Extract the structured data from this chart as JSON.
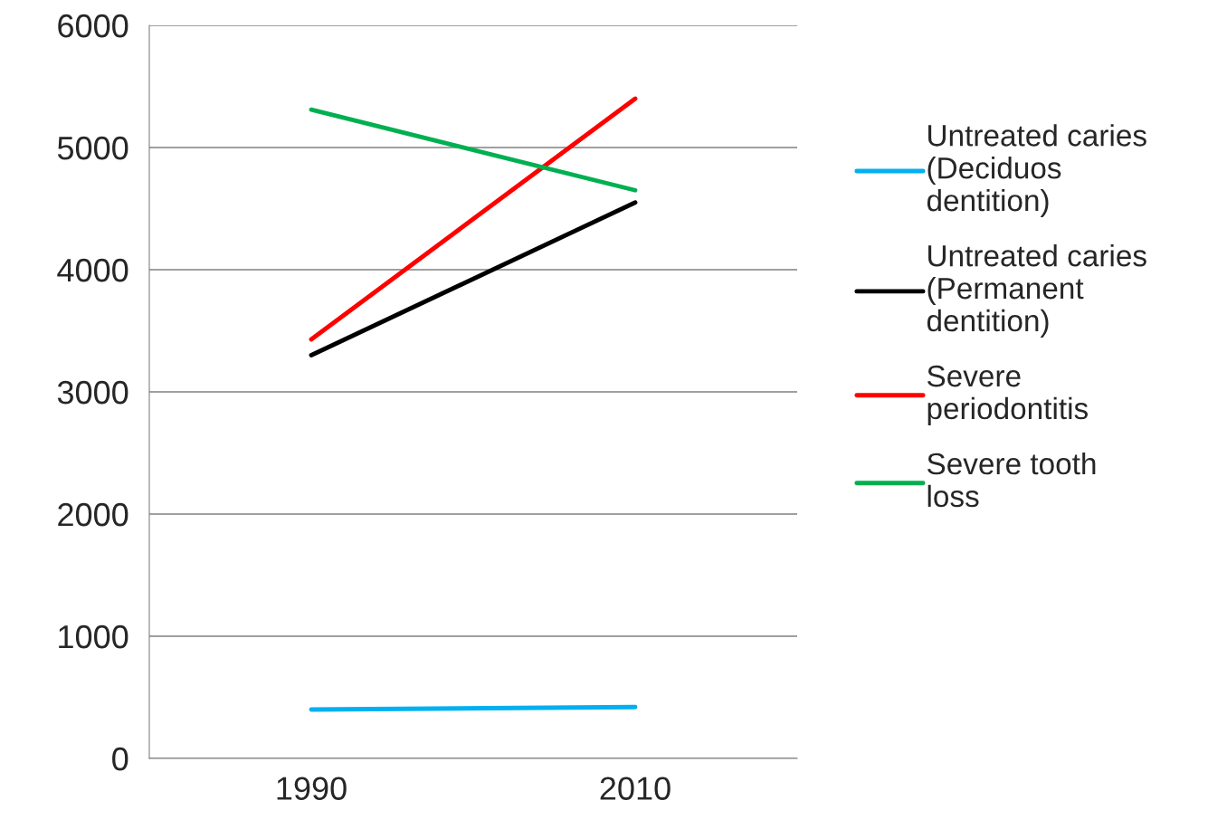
{
  "chart_data": {
    "type": "line",
    "categories": [
      "1990",
      "2010"
    ],
    "series": [
      {
        "name": "Untreated caries (Deciduos dentition)",
        "color": "#00b0f0",
        "values": [
          400,
          420
        ]
      },
      {
        "name": "Untreated caries (Permanent dentition)",
        "color": "#000000",
        "values": [
          3300,
          4550
        ]
      },
      {
        "name": "Severe periodontitis",
        "color": "#ff0000",
        "values": [
          3430,
          5400
        ]
      },
      {
        "name": "Severe tooth loss",
        "color": "#00b050",
        "values": [
          5310,
          4650
        ]
      }
    ],
    "ylim": [
      0,
      6000
    ],
    "yticks": [
      0,
      1000,
      2000,
      3000,
      4000,
      5000,
      6000
    ],
    "grid": "y",
    "legend": "right",
    "marker": "none",
    "line_style": "solid"
  }
}
